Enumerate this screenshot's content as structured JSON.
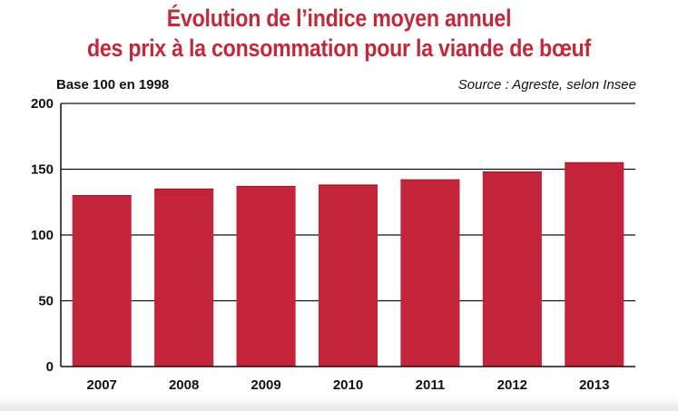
{
  "title_line1": "Évolution de l’indice moyen annuel",
  "title_line2": "des prix à la consommation pour la viande de bœuf",
  "base_label": "Base 100 en 1998",
  "source_label": "Source : Agreste, selon Insee",
  "colors": {
    "bar": "#c4243a",
    "title": "#c22a3c",
    "grid": "#111111"
  },
  "chart_data": {
    "type": "bar",
    "title": "Évolution de l’indice moyen annuel des prix à la consommation pour la viande de bœuf",
    "categories": [
      "2007",
      "2008",
      "2009",
      "2010",
      "2011",
      "2012",
      "2013"
    ],
    "values": [
      130,
      135,
      137,
      138,
      142,
      148,
      155
    ],
    "ylim": [
      0,
      200
    ],
    "yticks": [
      0,
      50,
      100,
      150,
      200
    ],
    "grid": true,
    "xlabel": "",
    "ylabel": ""
  }
}
